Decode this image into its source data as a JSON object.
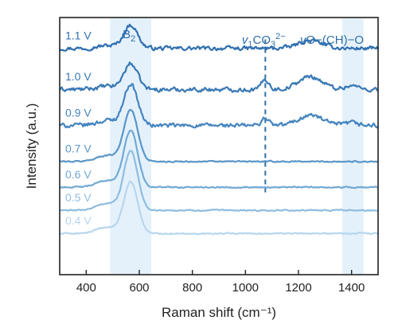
{
  "chart_data": {
    "type": "line",
    "title": "",
    "xlabel": "Raman shift (cm⁻¹)",
    "ylabel": "Intensity (a.u.)",
    "xlim": [
      300,
      1500
    ],
    "xticks": [
      {
        "value": 400,
        "label": "400"
      },
      {
        "value": 600,
        "label": "600"
      },
      {
        "value": 800,
        "label": "800"
      },
      {
        "value": 1000,
        "label": "1000"
      },
      {
        "value": 1200,
        "label": "1200"
      },
      {
        "value": 1400,
        "label": "1400"
      }
    ],
    "y_ticks_shown": false,
    "grid": false,
    "colors": {
      "band_fill": "#e4f1fb",
      "annotation": "#2f6fa6",
      "axis": "#222222"
    },
    "bands": [
      {
        "name": "B2",
        "label_main": "B",
        "label_sub": "2",
        "x_range": [
          490,
          645
        ]
      },
      {
        "name": "vO-(CH)-O",
        "x_range": [
          1365,
          1445
        ]
      }
    ],
    "annotations": {
      "carbonate": {
        "x": 1075,
        "prefix": "v",
        "sub": "1",
        "main": "CO",
        "sub2": "3",
        "sup": "2−"
      },
      "vo": {
        "prefix": "v",
        "main": "O−(CH)−O"
      }
    },
    "series": [
      {
        "name": "1.1 V",
        "label": "1.1 V",
        "color": "#2f6fb0",
        "baseline": 0.88,
        "peak_b2": 0.09,
        "peak_1075": 0.0,
        "peak_1240": 0.03,
        "peak_1400": 0.0,
        "noise": 0.012
      },
      {
        "name": "1.0 V",
        "label": "1.0 V",
        "color": "#3878b5",
        "baseline": 0.72,
        "peak_b2": 0.1,
        "peak_1075": 0.04,
        "peak_1240": 0.05,
        "peak_1400": 0.015,
        "noise": 0.013
      },
      {
        "name": "0.9 V",
        "label": "0.9 V",
        "color": "#4585bf",
        "baseline": 0.58,
        "peak_b2": 0.16,
        "peak_1075": 0.03,
        "peak_1240": 0.04,
        "peak_1400": 0.01,
        "noise": 0.013
      },
      {
        "name": "0.7 V",
        "label": "0.7 V",
        "color": "#5a96c7",
        "baseline": 0.44,
        "peak_b2": 0.2,
        "peak_1075": 0.0,
        "peak_1240": 0.0,
        "peak_1400": 0.0,
        "noise": 0.004
      },
      {
        "name": "0.6 V",
        "label": "0.6 V",
        "color": "#72a9d3",
        "baseline": 0.34,
        "peak_b2": 0.22,
        "peak_1075": 0.0,
        "peak_1240": 0.0,
        "peak_1400": 0.0,
        "noise": 0.004
      },
      {
        "name": "0.5 V",
        "label": "0.5 V",
        "color": "#8fbde0",
        "baseline": 0.25,
        "peak_b2": 0.23,
        "peak_1075": 0.0,
        "peak_1240": 0.0,
        "peak_1400": 0.0,
        "noise": 0.004
      },
      {
        "name": "0.4 V",
        "label": "0.4 V",
        "color": "#b7d6ee",
        "baseline": 0.16,
        "peak_b2": 0.2,
        "peak_1075": 0.0,
        "peak_1240": 0.0,
        "peak_1400": 0.0,
        "noise": 0.004
      }
    ]
  }
}
